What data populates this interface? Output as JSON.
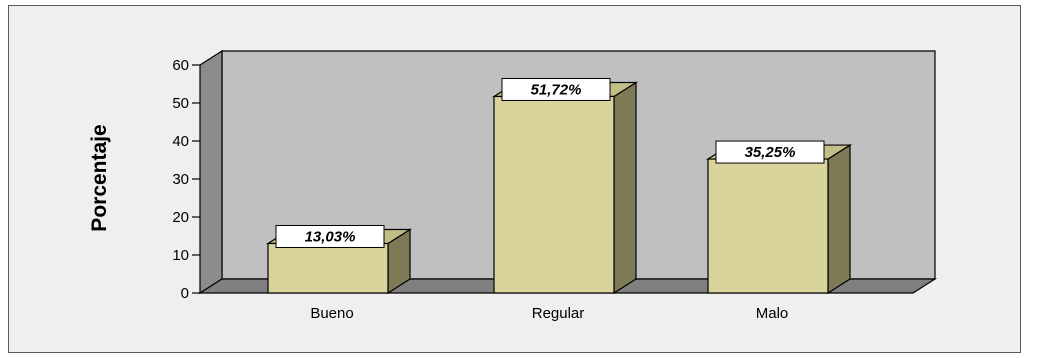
{
  "chart_data": {
    "type": "bar",
    "categories": [
      "Bueno",
      "Regular",
      "Malo"
    ],
    "values": [
      13.03,
      51.72,
      35.25
    ],
    "data_labels": [
      "13,03%",
      "51,72%",
      "35,25%"
    ],
    "ylabel": "Porcentaje",
    "xlabel": "",
    "ylim": [
      0,
      60
    ],
    "yticks": [
      0,
      10,
      20,
      30,
      40,
      50,
      60
    ],
    "grid": false,
    "style": "3d",
    "colors": {
      "bar_front": "#d8d49c",
      "bar_side": "#7d7a55",
      "bar_top": "#c2be88",
      "back_wall": "#c0c0c0",
      "left_wall": "#8c8c8c",
      "floor": "#808080",
      "frame_bg": "#efefef"
    }
  }
}
